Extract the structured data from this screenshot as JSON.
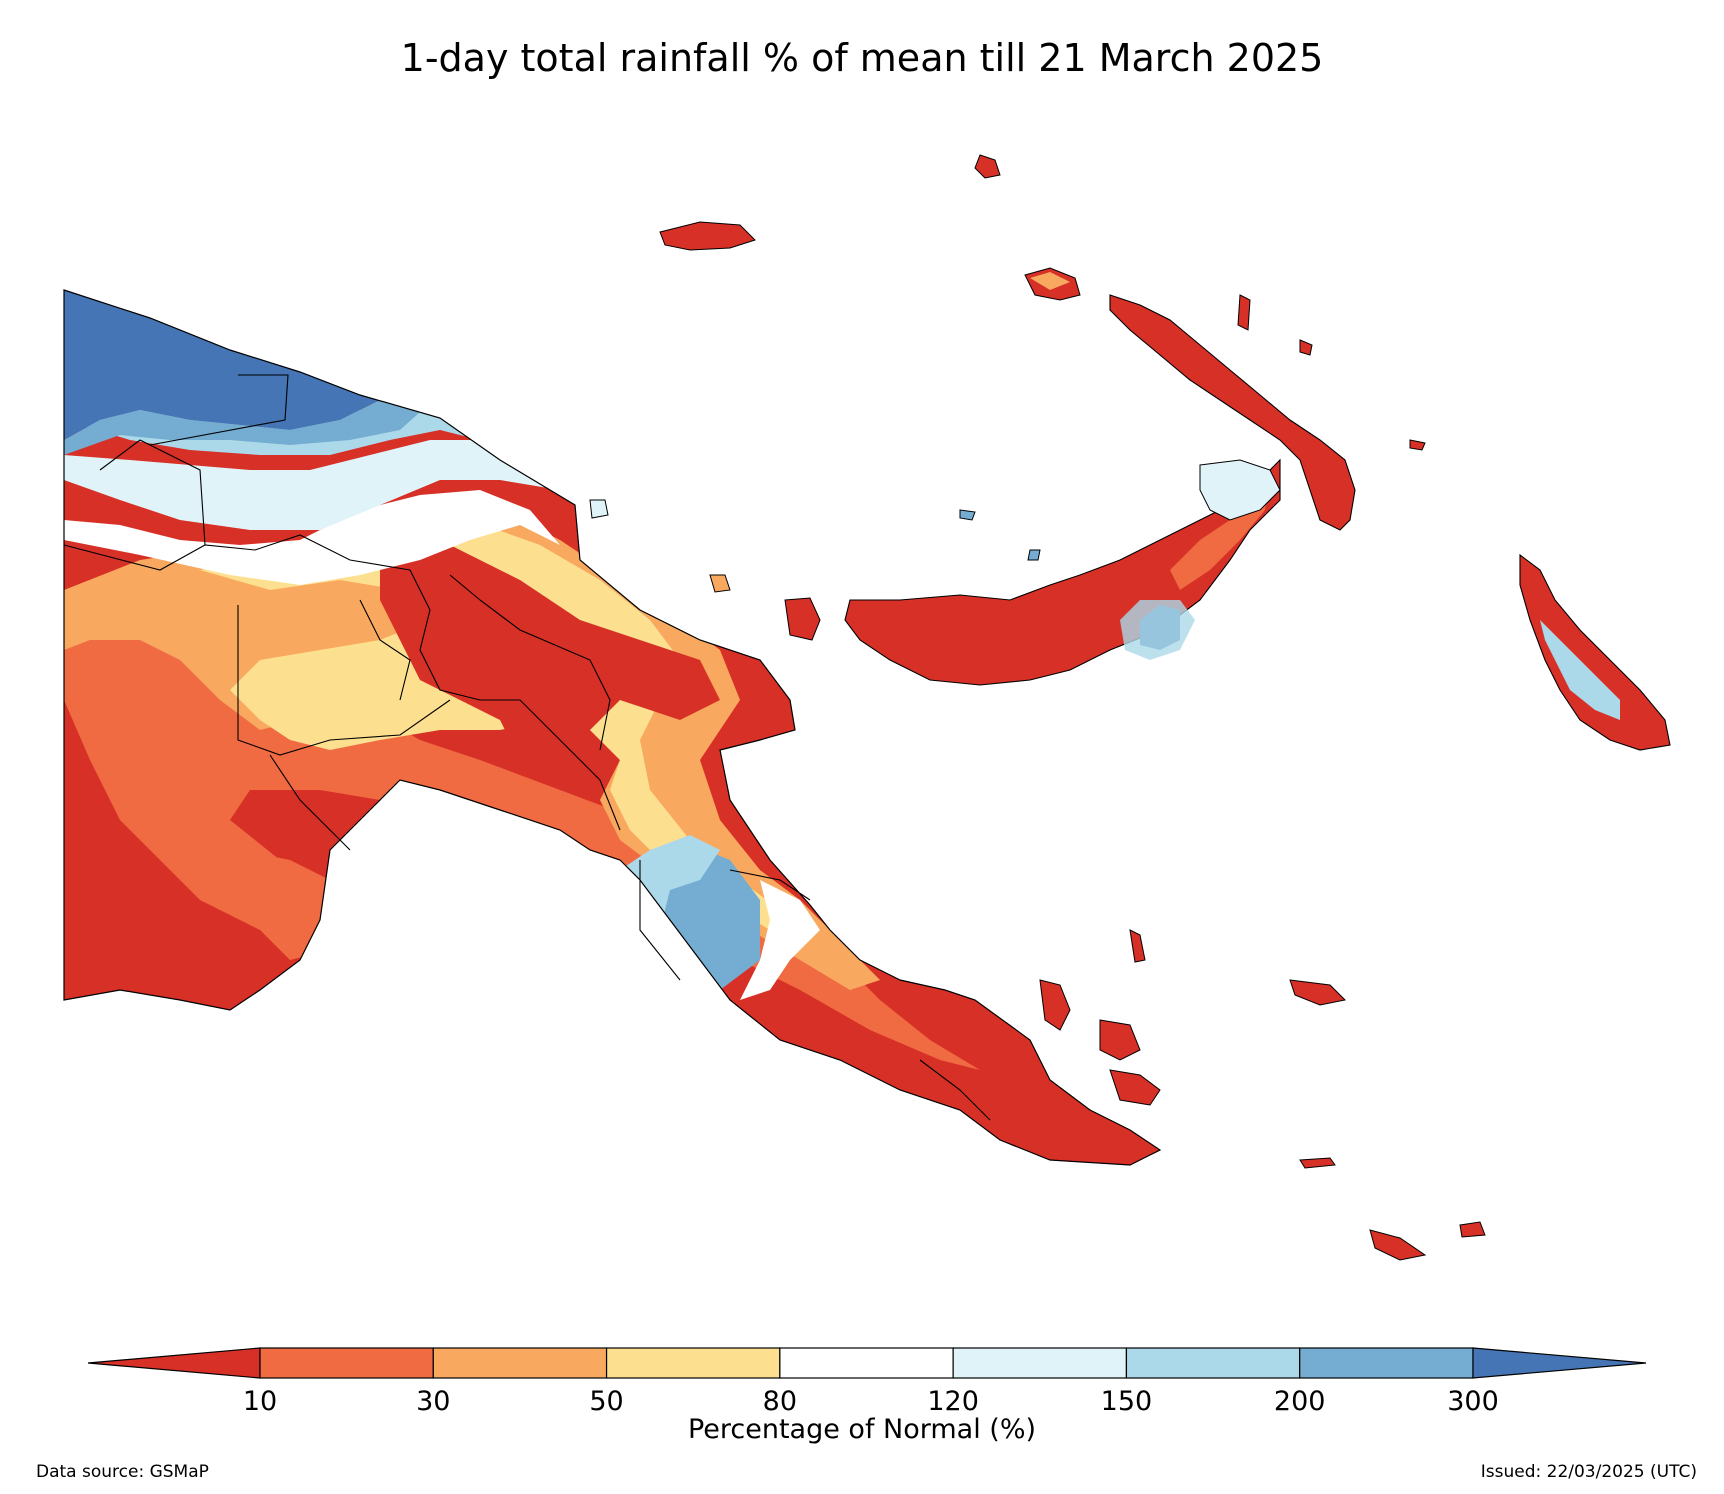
{
  "title": "1-day total rainfall % of mean till 21 March 2025",
  "legend": {
    "label": "Percentage of Normal (%)",
    "ticks": [
      "10",
      "30",
      "50",
      "80",
      "120",
      "150",
      "200",
      "300"
    ],
    "colors": [
      "#d73027",
      "#f06a42",
      "#f8a95f",
      "#fde08f",
      "#ffffff",
      "#e0f3f8",
      "#abd9e9",
      "#74add1",
      "#4575b4"
    ]
  },
  "footer": {
    "source": "Data source: GSMaP",
    "issued": "Issued: 22/03/2025 (UTC)"
  },
  "colors": {
    "red": "#d73027",
    "orange": "#f06a42",
    "light_orange": "#f8a95f",
    "yellow": "#fde08f",
    "white": "#ffffff",
    "pale_blue": "#e0f3f8",
    "light_blue": "#abd9e9",
    "mid_blue": "#74add1",
    "blue": "#4575b4"
  }
}
